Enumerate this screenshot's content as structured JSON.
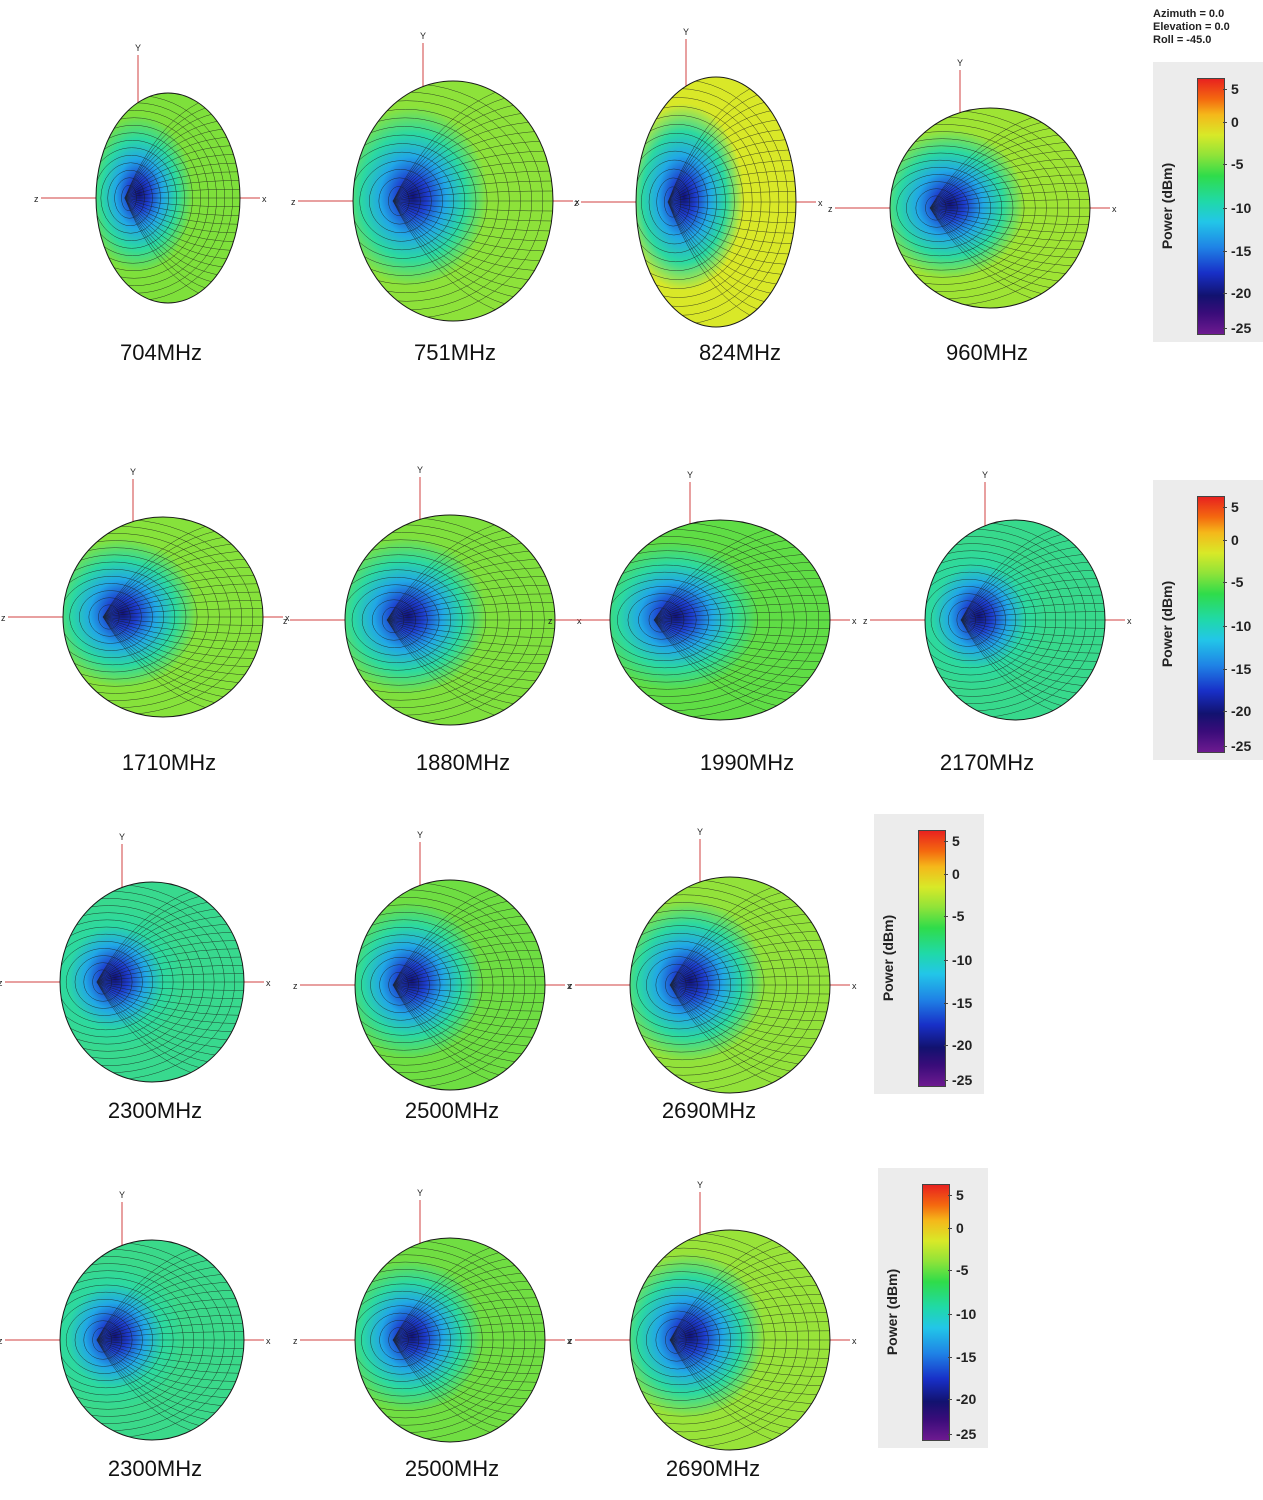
{
  "view": {
    "azimuth": "Azimuth = 0.0",
    "elevation": "Elevation = 0.0",
    "roll": "Roll = -45.0"
  },
  "axes": {
    "x": "x",
    "y": "Y",
    "z": "z"
  },
  "colorbar": {
    "title": "Power  (dBm)",
    "ticks": [
      "5",
      "0",
      "-5",
      "-10",
      "-15",
      "-20",
      "-25"
    ]
  },
  "rows": [
    {
      "plots": [
        {
          "freq": "704MHz",
          "dominant_color": "#7ee03b"
        },
        {
          "freq": "751MHz",
          "dominant_color": "#8de23a"
        },
        {
          "freq": "824MHz",
          "dominant_color": "#d9e828"
        },
        {
          "freq": "960MHz",
          "dominant_color": "#9ee434"
        }
      ]
    },
    {
      "plots": [
        {
          "freq": "1710MHz",
          "dominant_color": "#86e23b"
        },
        {
          "freq": "1880MHz",
          "dominant_color": "#7fe03d"
        },
        {
          "freq": "1990MHz",
          "dominant_color": "#5fdd45"
        },
        {
          "freq": "2170MHz",
          "dominant_color": "#37d98c"
        }
      ]
    },
    {
      "plots": [
        {
          "freq": "2300MHz",
          "dominant_color": "#38d98e"
        },
        {
          "freq": "2500MHz",
          "dominant_color": "#6ede42"
        },
        {
          "freq": "2690MHz",
          "dominant_color": "#92e23a"
        }
      ]
    },
    {
      "plots": [
        {
          "freq": "2300MHz",
          "dominant_color": "#3ad98a"
        },
        {
          "freq": "2500MHz",
          "dominant_color": "#70de42"
        },
        {
          "freq": "2690MHz",
          "dominant_color": "#98e339"
        }
      ]
    }
  ]
}
